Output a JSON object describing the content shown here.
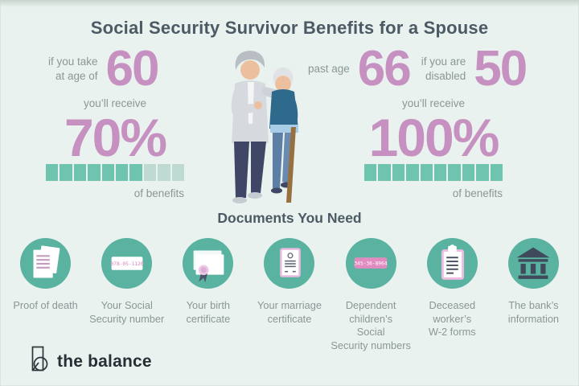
{
  "title": "Social Security Survivor Benefits for a Spouse",
  "stats": {
    "left": {
      "age_label": "if you take\nat age of",
      "age_value": "60",
      "receive_label": "you’ll receive",
      "percent": "70%",
      "bar": {
        "total": 10,
        "filled": 7
      },
      "benefits_label": "of benefits"
    },
    "right": {
      "age_label_1": "past age",
      "age_value_1": "66",
      "age_label_2": "if you are\ndisabled",
      "age_value_2": "50",
      "receive_label": "you’ll receive",
      "percent": "100%",
      "bar": {
        "total": 10,
        "filled": 10
      },
      "benefits_label": "of benefits"
    }
  },
  "documents": {
    "heading": "Documents You Need",
    "items": [
      {
        "icon": "death-certificate-icon",
        "label": "Proof of death"
      },
      {
        "icon": "ssn-card-icon",
        "label": "Your Social\nSecurity number",
        "card_number": "078-05-1120"
      },
      {
        "icon": "birth-certificate-icon",
        "label": "Your birth\ncertificate"
      },
      {
        "icon": "marriage-certificate-icon",
        "label": "Your marriage\ncertificate"
      },
      {
        "icon": "children-ssn-icon",
        "label": "Dependent\nchildren’s\nSocial\nSecurity numbers",
        "card_number": "345-36-8964"
      },
      {
        "icon": "w2-form-icon",
        "label": "Deceased\nworker’s\nW-2 forms"
      },
      {
        "icon": "bank-icon",
        "label": "The bank’s\ninformation"
      }
    ]
  },
  "footer": {
    "brand": "the balance"
  },
  "colors": {
    "background": "#e9f2ee",
    "accent_pink": "#c691c1",
    "bar_filled": "#6ec4af",
    "bar_empty": "#bedad2",
    "circle_teal": "#5ab2a0",
    "heading_slate": "#4b5a64",
    "label_gray": "#8c9696",
    "dark_icon": "#3f4b5c",
    "badge_pink": "#e18cc1"
  },
  "chart_data": [
    {
      "type": "bar",
      "title": "Survivor benefit if taken at age 60",
      "categories": [
        "of benefits"
      ],
      "values": [
        70
      ],
      "unit": "%",
      "note": "7 of 10 blocks filled"
    },
    {
      "type": "bar",
      "title": "Survivor benefit past age 66 (age 50 if disabled)",
      "categories": [
        "of benefits"
      ],
      "values": [
        100
      ],
      "unit": "%",
      "note": "10 of 10 blocks filled"
    }
  ]
}
